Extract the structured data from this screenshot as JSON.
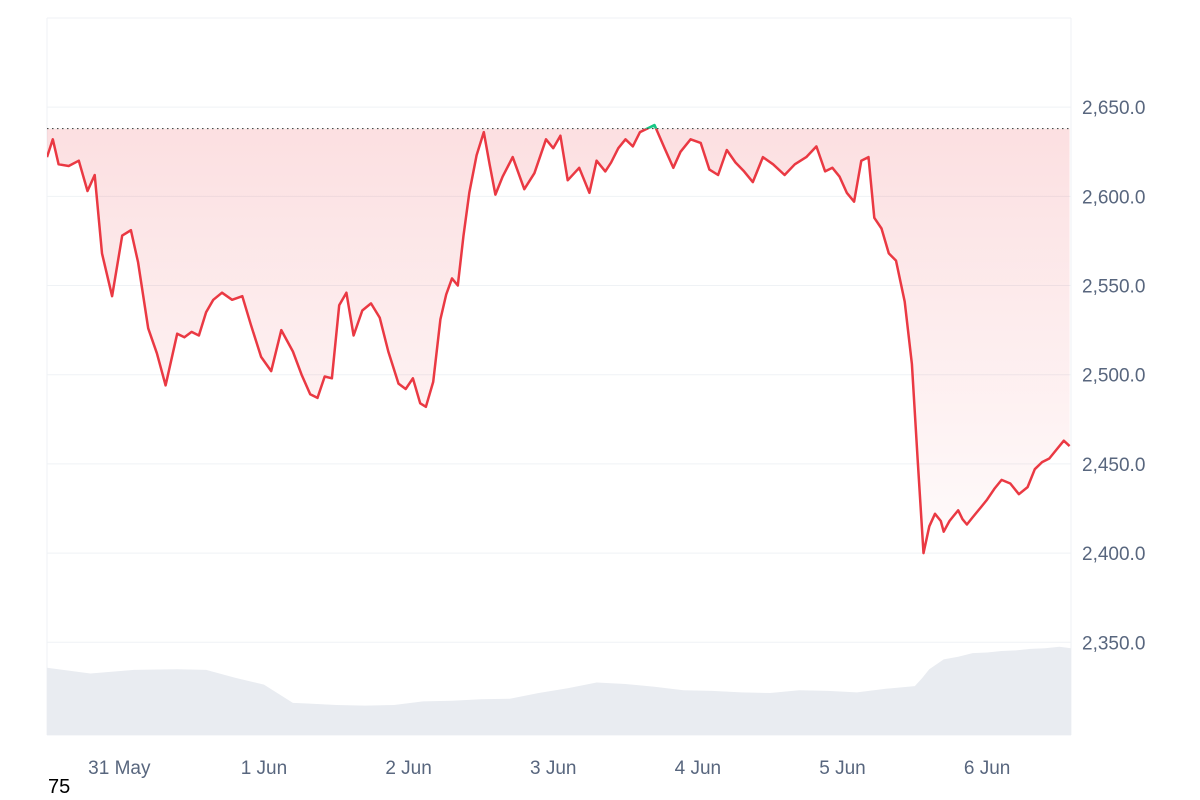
{
  "colors": {
    "up_line": "#16c784",
    "down_line": "#ea3943",
    "up_fill": "#16c784",
    "down_fill": "#ea3943",
    "grid": "#eff2f5",
    "baseline": "#4a4a4a",
    "volume": "#e9ecf1",
    "axis_text": "#58667e"
  },
  "footer": {
    "corner_label": "75"
  },
  "chart_data": {
    "type": "area",
    "title": "",
    "xlabel": "",
    "ylabel": "",
    "y_axis_side": "right",
    "ylim": [
      2298,
      2700
    ],
    "y_ticks": [
      2350.0,
      2400.0,
      2450.0,
      2500.0,
      2550.0,
      2600.0,
      2650.0
    ],
    "y_tick_labels": [
      "2,350.0",
      "2,400.0",
      "2,450.0",
      "2,500.0",
      "2,550.0",
      "2,600.0",
      "2,650.0"
    ],
    "xlim": [
      0,
      7.08
    ],
    "x_ticks": [
      0.5,
      1.5,
      2.5,
      3.5,
      4.5,
      5.5,
      6.5
    ],
    "x_tick_labels": [
      "31 May",
      "1 Jun",
      "2 Jun",
      "3 Jun",
      "4 Jun",
      "5 Jun",
      "6 Jun"
    ],
    "x_units": "days since 30 May 00:00",
    "baseline": 2638,
    "grid": true,
    "price_series": {
      "name": "",
      "x": [
        0.0,
        0.04,
        0.08,
        0.15,
        0.22,
        0.28,
        0.33,
        0.38,
        0.45,
        0.52,
        0.58,
        0.63,
        0.7,
        0.76,
        0.82,
        0.87,
        0.9,
        0.95,
        1.0,
        1.05,
        1.1,
        1.15,
        1.21,
        1.28,
        1.35,
        1.41,
        1.48,
        1.55,
        1.62,
        1.7,
        1.76,
        1.82,
        1.87,
        1.92,
        1.97,
        2.02,
        2.07,
        2.12,
        2.18,
        2.24,
        2.3,
        2.36,
        2.43,
        2.48,
        2.53,
        2.58,
        2.62,
        2.67,
        2.72,
        2.76,
        2.8,
        2.84,
        2.88,
        2.92,
        2.97,
        3.02,
        3.06,
        3.1,
        3.15,
        3.22,
        3.3,
        3.37,
        3.45,
        3.5,
        3.55,
        3.6,
        3.68,
        3.75,
        3.8,
        3.86,
        3.9,
        3.95,
        4.0,
        4.05,
        4.1,
        4.15,
        4.2,
        4.27,
        4.33,
        4.38,
        4.45,
        4.52,
        4.58,
        4.64,
        4.7,
        4.76,
        4.82,
        4.88,
        4.95,
        5.02,
        5.1,
        5.17,
        5.25,
        5.32,
        5.38,
        5.43,
        5.48,
        5.53,
        5.58,
        5.63,
        5.68,
        5.72,
        5.77,
        5.82,
        5.87,
        5.93,
        5.98,
        6.02,
        6.06,
        6.1,
        6.14,
        6.18,
        6.2,
        6.22,
        6.24,
        6.27,
        6.3,
        6.33,
        6.36,
        6.4,
        6.45,
        6.5,
        6.55,
        6.6,
        6.66,
        6.72,
        6.78,
        6.83,
        6.88,
        6.93,
        6.98,
        7.03,
        7.07
      ],
      "values": [
        2622,
        2632,
        2618,
        2617,
        2620,
        2603,
        2612,
        2568,
        2544,
        2578,
        2581,
        2563,
        2526,
        2512,
        2494,
        2512,
        2523,
        2521,
        2524,
        2522,
        2535,
        2542,
        2546,
        2542,
        2544,
        2528,
        2510,
        2502,
        2525,
        2513,
        2500,
        2489,
        2487,
        2499,
        2498,
        2539,
        2546,
        2522,
        2536,
        2540,
        2532,
        2513,
        2495,
        2492,
        2498,
        2484,
        2482,
        2496,
        2531,
        2545,
        2554,
        2550,
        2578,
        2602,
        2623,
        2636,
        2618,
        2601,
        2611,
        2622,
        2604,
        2613,
        2632,
        2627,
        2634,
        2609,
        2616,
        2602,
        2620,
        2614,
        2619,
        2627,
        2632,
        2628,
        2636,
        2638,
        2640,
        2627,
        2616,
        2625,
        2632,
        2630,
        2615,
        2612,
        2626,
        2619,
        2614,
        2608,
        2622,
        2618,
        2612,
        2618,
        2622,
        2628,
        2614,
        2616,
        2611,
        2602,
        2597,
        2620,
        2622,
        2588,
        2582,
        2568,
        2564,
        2541,
        2506,
        2452,
        2400,
        2415,
        2422,
        2418,
        2412,
        2415,
        2418,
        2421,
        2424,
        2419,
        2416,
        2420,
        2425,
        2430,
        2436,
        2441,
        2439,
        2433,
        2437,
        2447,
        2451,
        2453,
        2458,
        2463,
        2460
      ]
    },
    "volume_series": {
      "name": "",
      "x": [
        0.0,
        0.3,
        0.6,
        0.9,
        1.1,
        1.3,
        1.5,
        1.7,
        1.8,
        2.0,
        2.2,
        2.4,
        2.6,
        2.8,
        3.0,
        3.2,
        3.4,
        3.6,
        3.8,
        4.0,
        4.2,
        4.4,
        4.6,
        4.8,
        5.0,
        5.2,
        5.4,
        5.6,
        5.8,
        6.0,
        6.05,
        6.1,
        6.2,
        6.3,
        6.4,
        6.5,
        6.6,
        6.7,
        6.8,
        6.9,
        7.0,
        7.08
      ],
      "values": [
        32,
        30,
        31,
        32,
        31,
        28,
        24,
        16,
        15,
        15,
        14,
        15,
        16,
        17,
        17,
        18,
        20,
        23,
        25,
        25,
        23,
        22,
        21,
        21,
        20,
        22,
        21,
        21,
        22,
        24,
        27,
        32,
        36,
        38,
        39,
        40,
        40,
        41,
        41,
        42,
        42,
        42
      ]
    }
  }
}
